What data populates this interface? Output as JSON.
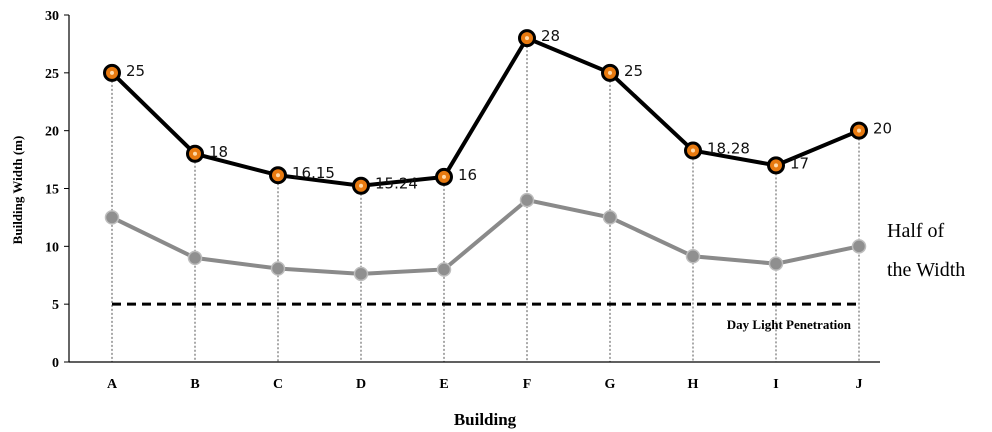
{
  "chart_data": {
    "type": "line",
    "categories": [
      "A",
      "B",
      "C",
      "D",
      "E",
      "F",
      "G",
      "H",
      "I",
      "J"
    ],
    "series": [
      {
        "values": [
          25,
          18,
          16.15,
          15.24,
          16,
          28,
          25,
          18.28,
          17,
          20
        ],
        "data_labels": [
          "25",
          "18",
          "16.15",
          "15.24",
          "16",
          "28",
          "25",
          "18.28",
          "17",
          "20"
        ],
        "color": "#000000",
        "marker_color": "#e87a10"
      },
      {
        "values": [
          12.5,
          9,
          8.08,
          7.62,
          8,
          14,
          12.5,
          9.14,
          8.5,
          10
        ],
        "color": "#8a8a8a"
      }
    ],
    "reference_line": {
      "value": 5,
      "label": "Day Light Penetration",
      "style": "dashed"
    },
    "annotation": [
      "Half of",
      "the Width"
    ],
    "xlabel": "Building",
    "ylabel": "Building Width (m)",
    "ylim": [
      0,
      30
    ],
    "yticks": [
      0,
      5,
      10,
      15,
      20,
      25,
      30
    ],
    "grid": false
  }
}
